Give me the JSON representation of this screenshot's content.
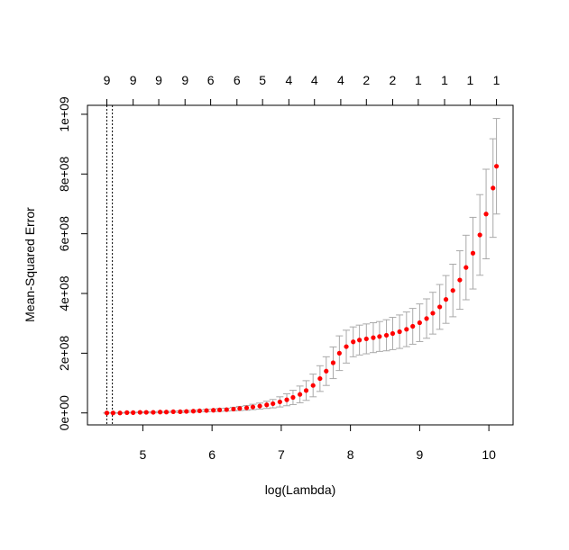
{
  "chart_data": {
    "type": "scatter",
    "title": "",
    "xlabel": "log(Lambda)",
    "ylabel": "Mean-Squared Error",
    "xlim": [
      4.2,
      10.35
    ],
    "ylim": [
      -40000000,
      1030000000
    ],
    "x_ticks": [
      5,
      6,
      7,
      8,
      9,
      10
    ],
    "x_tick_labels": [
      "5",
      "6",
      "7",
      "8",
      "9",
      "10"
    ],
    "y_ticks": [
      0,
      200000000,
      400000000,
      600000000,
      800000000,
      1000000000
    ],
    "y_tick_labels": [
      "0e+00",
      "2e+08",
      "4e+08",
      "6e+08",
      "8e+08",
      "1e+09"
    ],
    "top_axis": {
      "positions": [
        4.48,
        4.86,
        5.23,
        5.61,
        5.98,
        6.36,
        6.73,
        7.11,
        7.48,
        7.86,
        8.23,
        8.61,
        8.98,
        9.36,
        9.73,
        10.11
      ],
      "labels": [
        "9",
        "9",
        "9",
        "9",
        "6",
        "6",
        "5",
        "4",
        "4",
        "4",
        "2",
        "2",
        "1",
        "1",
        "1",
        "1"
      ]
    },
    "vlines": [
      4.48,
      4.56
    ],
    "point_color": "#ff0000",
    "errorbar_color": "#a9a9a9",
    "series": [
      {
        "x": [
          4.48,
          4.57,
          4.67,
          4.77,
          4.86,
          4.96,
          5.05,
          5.15,
          5.25,
          5.34,
          5.44,
          5.54,
          5.63,
          5.73,
          5.82,
          5.92,
          6.02,
          6.11,
          6.21,
          6.31,
          6.4,
          6.5,
          6.59,
          6.69,
          6.79,
          6.88,
          6.98,
          7.08,
          7.17,
          7.27,
          7.36,
          7.46,
          7.56,
          7.65,
          7.75,
          7.84,
          7.94,
          8.04,
          8.13,
          8.23,
          8.33,
          8.42,
          8.52,
          8.61,
          8.71,
          8.81,
          8.9,
          9.0,
          9.1,
          9.19,
          9.29,
          9.38,
          9.48,
          9.58,
          9.67,
          9.77,
          9.87,
          9.96,
          10.06,
          10.11
        ],
        "y": [
          0,
          0,
          0,
          1000000,
          1000000,
          2000000,
          2000000,
          2000000,
          3000000,
          3000000,
          4000000,
          4000000,
          5000000,
          6000000,
          7000000,
          8000000,
          9000000,
          10000000,
          11000000,
          13000000,
          15000000,
          17000000,
          20000000,
          23000000,
          27000000,
          31000000,
          37000000,
          44000000,
          52000000,
          62000000,
          75000000,
          92000000,
          115000000,
          140000000,
          168000000,
          200000000,
          222000000,
          238000000,
          244000000,
          248000000,
          252000000,
          256000000,
          260000000,
          266000000,
          272000000,
          280000000,
          290000000,
          302000000,
          316000000,
          334000000,
          355000000,
          380000000,
          410000000,
          445000000,
          487000000,
          535000000,
          596000000,
          666000000,
          753000000,
          826000000
        ],
        "err": [
          1000000,
          1000000,
          1000000,
          1000000,
          1000000,
          1000000,
          2000000,
          2000000,
          2000000,
          2000000,
          2000000,
          3000000,
          3000000,
          3000000,
          3000000,
          4000000,
          4000000,
          5000000,
          5000000,
          6000000,
          7000000,
          8000000,
          9000000,
          10000000,
          12000000,
          14000000,
          17000000,
          20000000,
          24000000,
          28000000,
          33000000,
          38000000,
          43000000,
          48000000,
          53000000,
          58000000,
          55000000,
          50000000,
          50000000,
          50000000,
          50000000,
          50000000,
          52000000,
          54000000,
          56000000,
          58000000,
          60000000,
          63000000,
          66000000,
          70000000,
          75000000,
          80000000,
          88000000,
          98000000,
          108000000,
          120000000,
          135000000,
          150000000,
          165000000,
          160000000
        ]
      }
    ]
  }
}
